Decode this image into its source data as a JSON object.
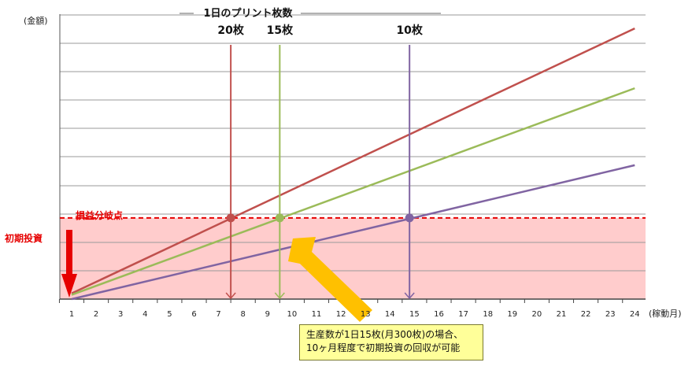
{
  "chart_data": {
    "type": "line",
    "ylabel": "(金額)",
    "xlabel": "(稼動月)",
    "categories": [
      "1",
      "2",
      "3",
      "4",
      "5",
      "6",
      "7",
      "8",
      "9",
      "10",
      "11",
      "12",
      "13",
      "14",
      "15",
      "16",
      "17",
      "18",
      "19",
      "20",
      "21",
      "22",
      "23",
      "24"
    ],
    "x_range": [
      1,
      24
    ],
    "y_range": [
      0,
      100
    ],
    "grid": true,
    "series": [
      {
        "key": "prints_20",
        "color": "#c0504d",
        "x": [
          1,
          24
        ],
        "y": [
          2,
          95
        ]
      },
      {
        "key": "prints_15",
        "color": "#9bbb59",
        "x": [
          1,
          24
        ],
        "y": [
          1.5,
          74
        ]
      },
      {
        "key": "prints_10",
        "color": "#8064a2",
        "x": [
          1,
          24
        ],
        "y": [
          0,
          47
        ]
      }
    ],
    "initial_investment": {
      "label": "初期投資",
      "y": 28.5,
      "fill": "#ffcccc",
      "line_color": "#e60000"
    },
    "break_even": {
      "label": "損益分岐点",
      "color": "#e60000",
      "points": [
        {
          "x": 7.5,
          "y": 28.5,
          "color": "#c0504d"
        },
        {
          "x": 9.5,
          "y": 28.5,
          "color": "#9bbb59"
        },
        {
          "x": 14.8,
          "y": 28.5,
          "color": "#8064a2"
        }
      ]
    },
    "drop_lines": [
      {
        "label": "20枚",
        "x": 7.5,
        "color": "#c0504d"
      },
      {
        "label": "15枚",
        "x": 9.5,
        "color": "#9bbb59"
      },
      {
        "label": "10枚",
        "x": 14.8,
        "color": "#8064a2"
      }
    ],
    "header_label": "1日のプリント枚数",
    "callout": {
      "line1": "生産数が1日15枚(月300枚)の場合、",
      "line2": "10ヶ月程度で初期投資の回収が可能",
      "arrow_color": "#ffc000"
    }
  }
}
